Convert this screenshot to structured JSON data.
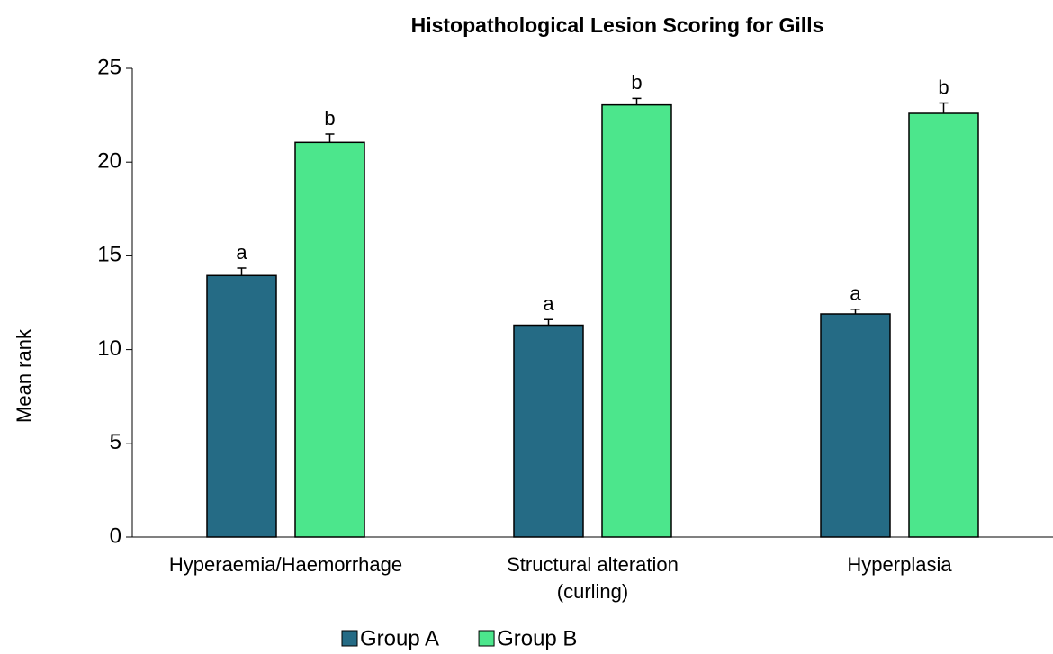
{
  "chart_data": {
    "type": "bar",
    "title": "Histopathological Lesion Scoring for Gills",
    "y_label": "Mean rank",
    "categories": [
      "Hyperaemia/Haemorrhage",
      "Structural alteration\n(curling)",
      "Hyperplasia"
    ],
    "series": [
      {
        "name": "Group A",
        "color": "#256b85",
        "values": [
          13.95,
          11.3,
          11.9
        ],
        "errors": [
          0.4,
          0.3,
          0.25
        ],
        "labels": [
          "a",
          "a",
          "a"
        ]
      },
      {
        "name": "Group B",
        "color": "#4ce68c",
        "values": [
          21.05,
          23.05,
          22.6
        ],
        "errors": [
          0.45,
          0.35,
          0.55
        ],
        "labels": [
          "b",
          "b",
          "b"
        ]
      }
    ],
    "ylim": [
      0,
      25
    ],
    "yticks": [
      0,
      5,
      10,
      15,
      20,
      25
    ],
    "grid": false,
    "legend": "bottom"
  }
}
